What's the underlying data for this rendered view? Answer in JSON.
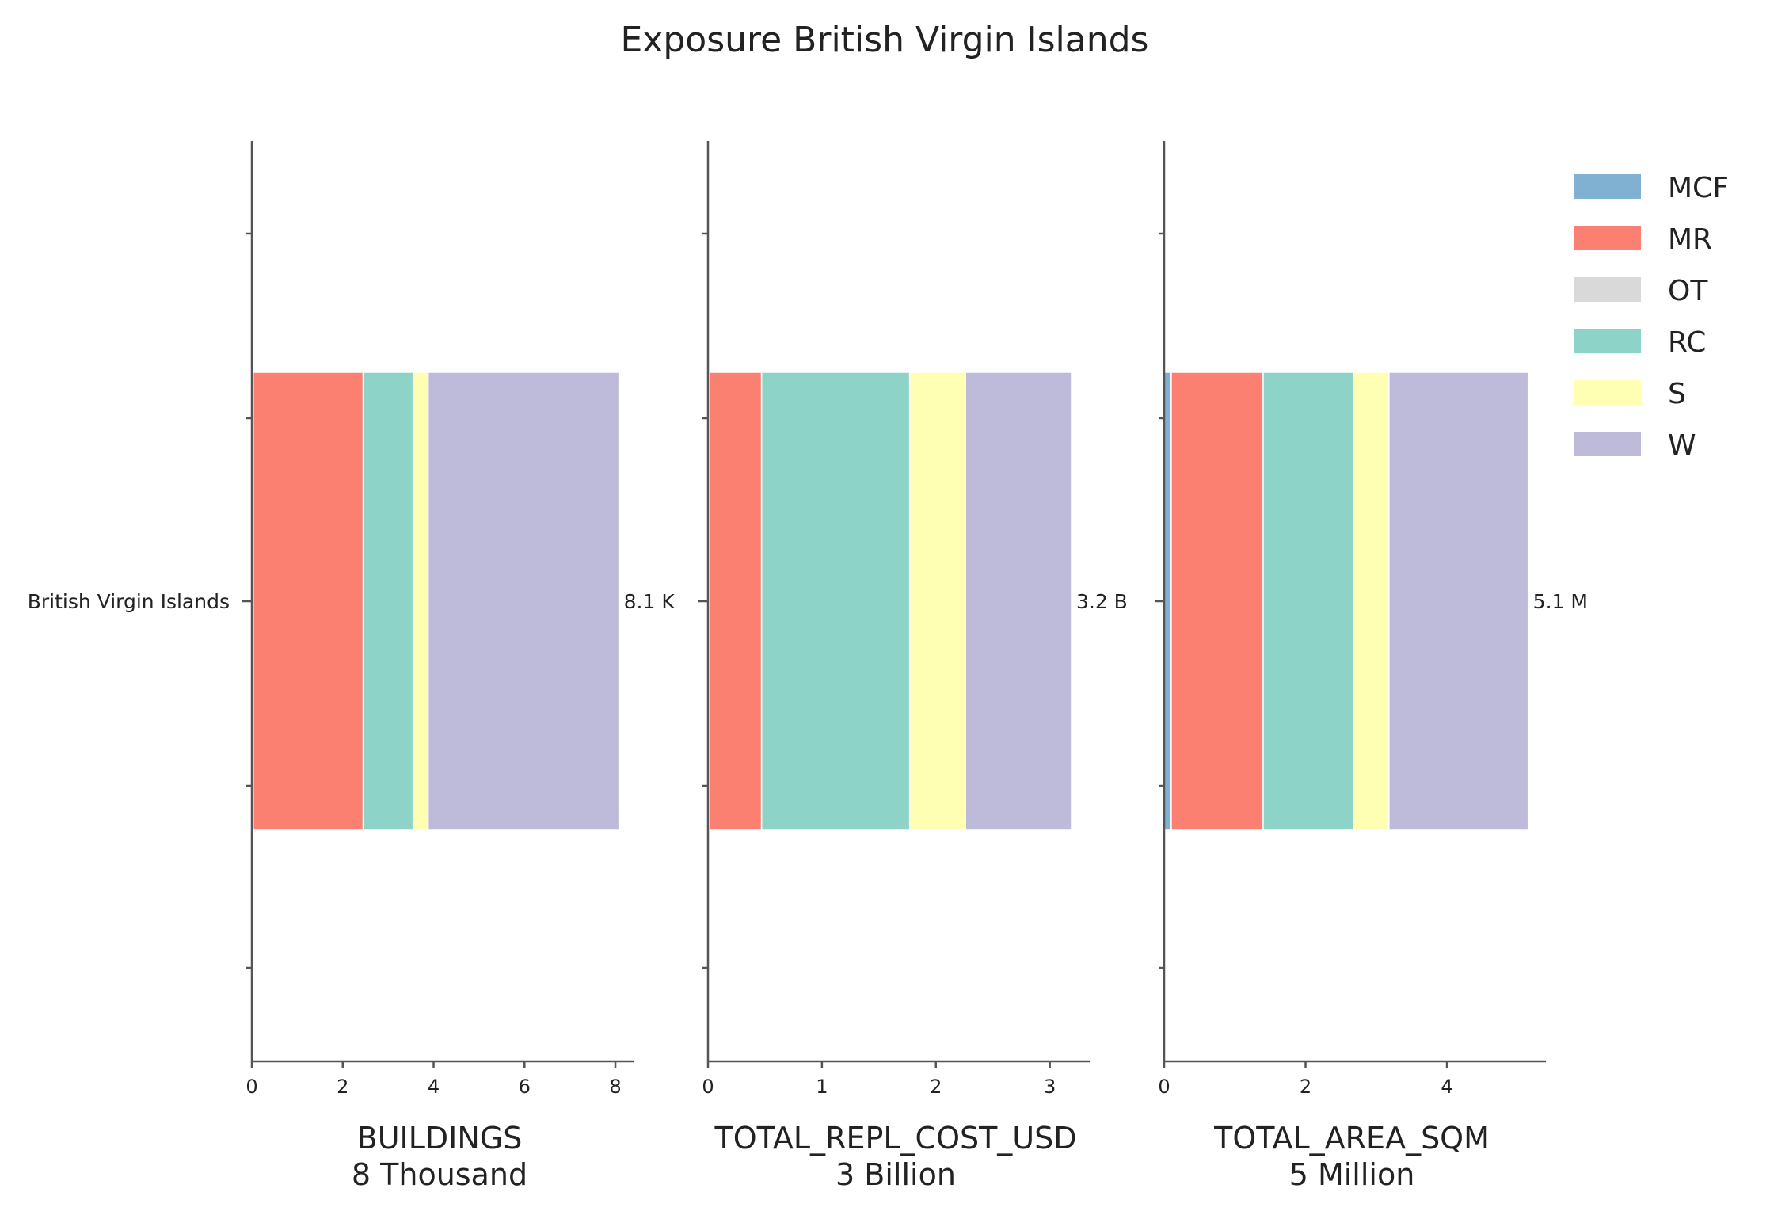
{
  "chart_data": {
    "type": "bar",
    "orientation": "horizontal",
    "stacked": true,
    "title": "Exposure British Virgin Islands",
    "category": "British Virgin Islands",
    "colors": {
      "MCF": "#80b1d3",
      "MR": "#fb8072",
      "OT": "#d9d9d9",
      "RC": "#8dd3c7",
      "S": "#ffffb3",
      "W": "#bebada"
    },
    "legend": {
      "position": "top-right",
      "entries": [
        "MCF",
        "MR",
        "OT",
        "RC",
        "S",
        "W"
      ]
    },
    "panels": [
      {
        "xlabel": "BUILDINGS",
        "xlabel_sub": "8 Thousand",
        "xlim": [
          0,
          8.4
        ],
        "xticks": [
          0,
          2,
          4,
          6,
          8
        ],
        "total_label": "8.1 K",
        "series": [
          {
            "name": "MCF",
            "values": [
              0.03
            ]
          },
          {
            "name": "MR",
            "values": [
              2.42
            ]
          },
          {
            "name": "OT",
            "values": [
              0.0
            ]
          },
          {
            "name": "RC",
            "values": [
              1.1
            ]
          },
          {
            "name": "S",
            "values": [
              0.33
            ]
          },
          {
            "name": "W",
            "values": [
              4.2
            ]
          }
        ]
      },
      {
        "xlabel": "TOTAL_REPL_COST_USD",
        "xlabel_sub": "3 Billion",
        "xlim": [
          0,
          3.35
        ],
        "xticks": [
          0,
          1,
          2,
          3
        ],
        "total_label": "3.2 B",
        "series": [
          {
            "name": "MCF",
            "values": [
              0.01
            ]
          },
          {
            "name": "MR",
            "values": [
              0.46
            ]
          },
          {
            "name": "OT",
            "values": [
              0.0
            ]
          },
          {
            "name": "RC",
            "values": [
              1.3
            ]
          },
          {
            "name": "S",
            "values": [
              0.49
            ]
          },
          {
            "name": "W",
            "values": [
              0.93
            ]
          }
        ]
      },
      {
        "xlabel": "TOTAL_AREA_SQM",
        "xlabel_sub": "5 Million",
        "xlim": [
          0,
          5.4
        ],
        "xticks": [
          0,
          2,
          4
        ],
        "total_label": "5.1 M",
        "series": [
          {
            "name": "MCF",
            "values": [
              0.1
            ]
          },
          {
            "name": "MR",
            "values": [
              1.3
            ]
          },
          {
            "name": "OT",
            "values": [
              0.0
            ]
          },
          {
            "name": "RC",
            "values": [
              1.28
            ]
          },
          {
            "name": "S",
            "values": [
              0.5
            ]
          },
          {
            "name": "W",
            "values": [
              1.97
            ]
          }
        ]
      }
    ]
  }
}
